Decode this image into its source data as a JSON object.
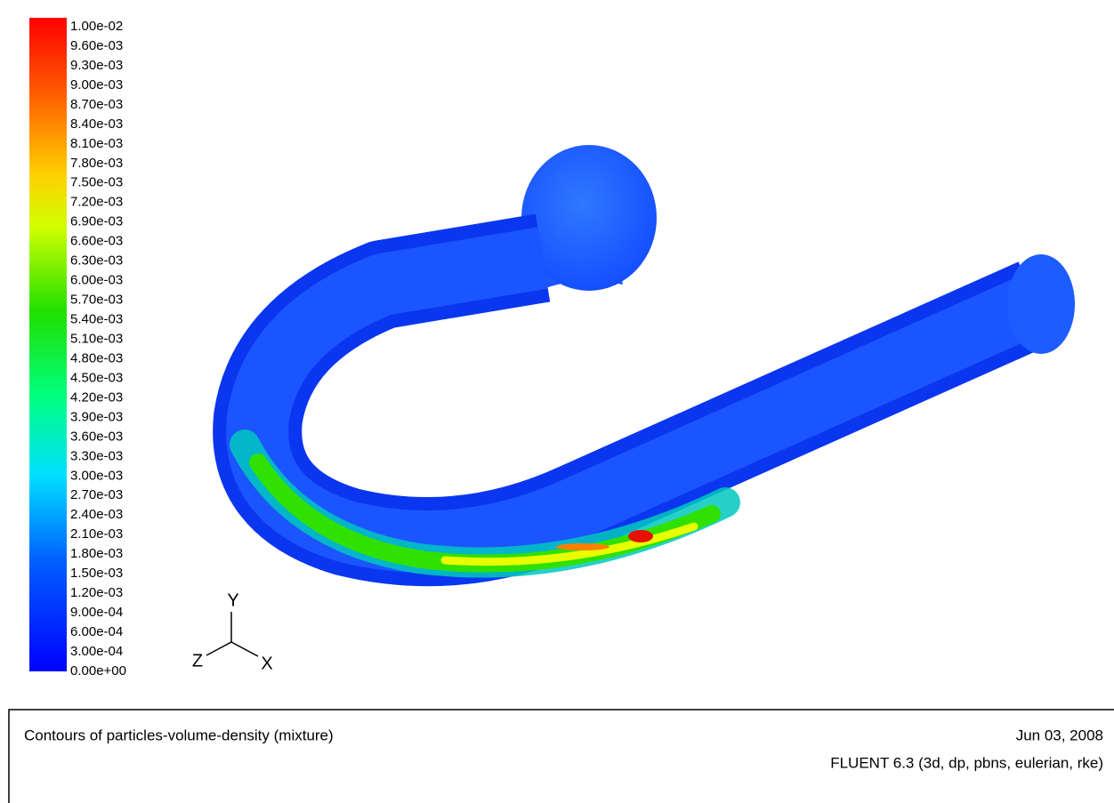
{
  "legend": {
    "labels": [
      "1.00e-02",
      "9.60e-03",
      "9.30e-03",
      "9.00e-03",
      "8.70e-03",
      "8.40e-03",
      "8.10e-03",
      "7.80e-03",
      "7.50e-03",
      "7.20e-03",
      "6.90e-03",
      "6.60e-03",
      "6.30e-03",
      "6.00e-03",
      "5.70e-03",
      "5.40e-03",
      "5.10e-03",
      "4.80e-03",
      "4.50e-03",
      "4.20e-03",
      "3.90e-03",
      "3.60e-03",
      "3.30e-03",
      "3.00e-03",
      "2.70e-03",
      "2.40e-03",
      "2.10e-03",
      "1.80e-03",
      "1.50e-03",
      "1.20e-03",
      "9.00e-04",
      "6.00e-04",
      "3.00e-04",
      "0.00e+00"
    ]
  },
  "axes": {
    "y": "Y",
    "z": "Z",
    "x": "X"
  },
  "footer": {
    "title": "Contours of particles-volume-density (mixture)",
    "date": "Jun 03, 2008",
    "solver": "FLUENT 6.3 (3d, dp, pbns, eulerian, rke)"
  }
}
